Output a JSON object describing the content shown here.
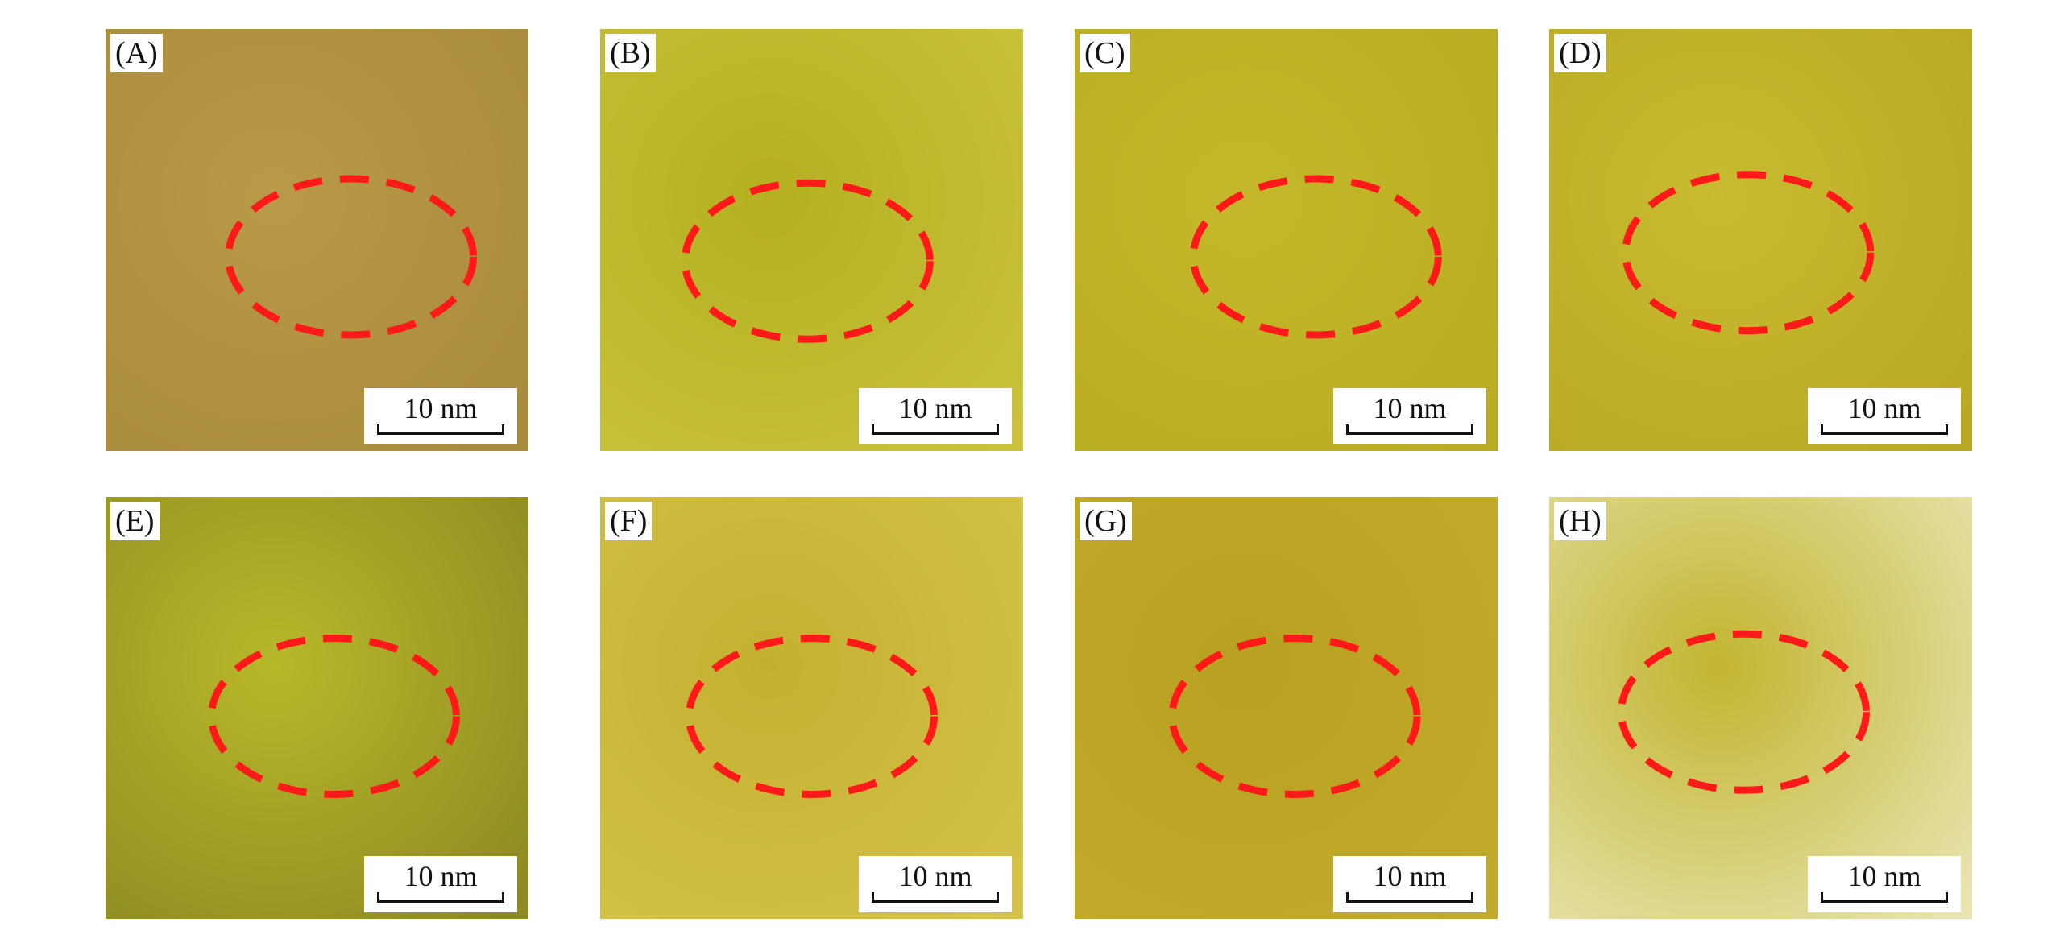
{
  "panels": [
    {
      "label": "(A)",
      "scale_bar": "10 nm",
      "color": "#b99a48",
      "color2": "#a88a3c"
    },
    {
      "label": "(B)",
      "scale_bar": "10 nm",
      "color": "#b5b021",
      "color2": "#c9c23c"
    },
    {
      "label": "(C)",
      "scale_bar": "10 nm",
      "color": "#c4b82a",
      "color2": "#b9ac22"
    },
    {
      "label": "(D)",
      "scale_bar": "10 nm",
      "color": "#c8bb30",
      "color2": "#b9a824"
    },
    {
      "label": "(E)",
      "scale_bar": "10 nm",
      "color": "#b8b82a",
      "color2": "#8e8a22"
    },
    {
      "label": "(F)",
      "scale_bar": "10 nm",
      "color": "#c4b030",
      "color2": "#d4c24a"
    },
    {
      "label": "(G)",
      "scale_bar": "10 nm",
      "color": "#b8a020",
      "color2": "#c2aa2a"
    },
    {
      "label": "(H)",
      "scale_bar": "10 nm",
      "color": "#c2b530",
      "color2": "#e8e4b0"
    }
  ],
  "annotation_color": "#ff1a1a"
}
